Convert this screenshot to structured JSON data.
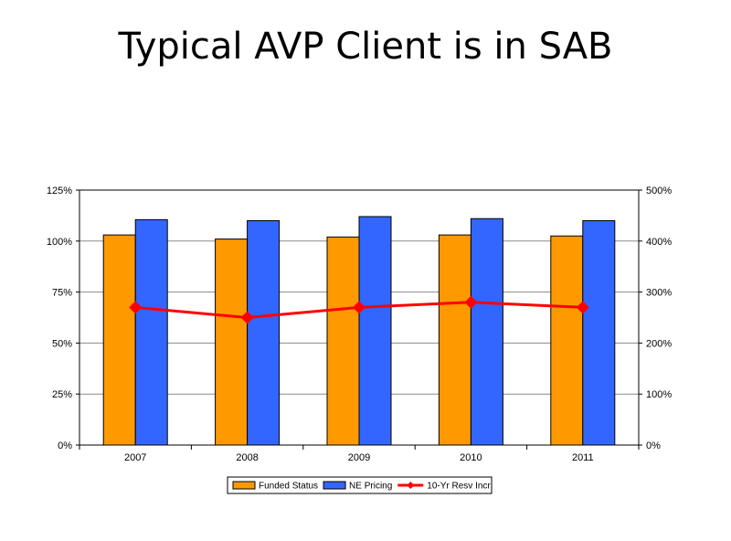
{
  "slide": {
    "title": "Typical AVP Client is in SAB"
  },
  "chart_data": {
    "type": "bar",
    "categories": [
      "2007",
      "2008",
      "2009",
      "2010",
      "2011"
    ],
    "series": [
      {
        "name": "Funded Status",
        "type": "bar",
        "axis": "left",
        "color": "#FF9900",
        "values": [
          103,
          101,
          102,
          103,
          102.5
        ]
      },
      {
        "name": "NE Pricing",
        "type": "bar",
        "axis": "left",
        "color": "#3366FF",
        "values": [
          110.5,
          110,
          112,
          111,
          110
        ]
      },
      {
        "name": "10-Yr Resv Incr",
        "type": "line",
        "axis": "right",
        "color": "#FF0000",
        "marker": "diamond",
        "values": [
          270,
          250,
          270,
          280,
          270
        ]
      }
    ],
    "left_axis": {
      "ylim": [
        0,
        125
      ],
      "ticks": [
        "0%",
        "25%",
        "50%",
        "75%",
        "100%",
        "125%"
      ]
    },
    "right_axis": {
      "ylim": [
        0,
        500
      ],
      "ticks": [
        "0%",
        "100%",
        "200%",
        "300%",
        "400%",
        "500%"
      ]
    },
    "grid": true,
    "legend_position": "bottom"
  }
}
